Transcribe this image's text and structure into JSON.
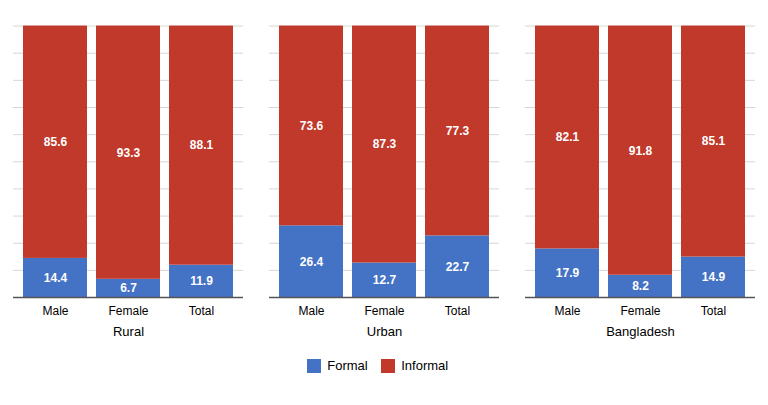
{
  "chart_data": {
    "type": "bar",
    "stacked": true,
    "groups": [
      "Rural",
      "Urban",
      "Bangladesh"
    ],
    "categories": [
      "Male",
      "Female",
      "Total",
      "Male",
      "Female",
      "Total",
      "Male",
      "Female",
      "Total"
    ],
    "series": [
      {
        "name": "Formal",
        "color": "#4472C4",
        "values": [
          14.4,
          6.7,
          11.9,
          26.4,
          12.7,
          22.7,
          17.9,
          8.2,
          14.9
        ]
      },
      {
        "name": "Informal",
        "color": "#C0392B",
        "values": [
          85.6,
          93.3,
          88.1,
          73.6,
          87.3,
          77.3,
          82.1,
          91.8,
          85.1
        ]
      }
    ],
    "ylim": [
      0,
      105
    ],
    "yticks": [
      0,
      10,
      20,
      30,
      40,
      50,
      60,
      70,
      80,
      90,
      100
    ],
    "grid": true,
    "tick_labels": "x",
    "data_labels": true,
    "legend": "bottom"
  }
}
